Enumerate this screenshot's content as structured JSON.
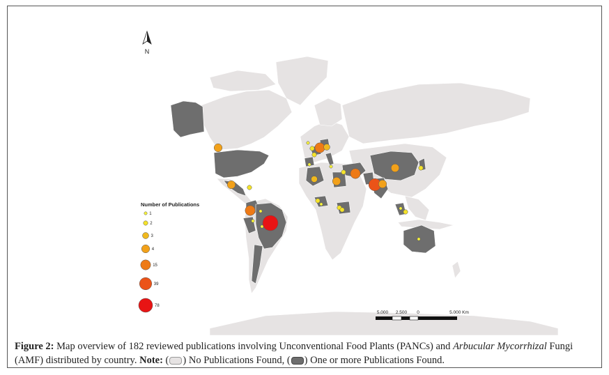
{
  "north_arrow": {
    "letter": "N"
  },
  "legend": {
    "title": "Number of Publications",
    "items": [
      {
        "label": "1",
        "color": "#f7f23a"
      },
      {
        "label": "2",
        "color": "#f5e32a"
      },
      {
        "label": "3",
        "color": "#efb81e"
      },
      {
        "label": "4",
        "color": "#f2a11a"
      },
      {
        "label": "15",
        "color": "#ee7a16"
      },
      {
        "label": "39",
        "color": "#eb5318"
      },
      {
        "label": "78",
        "color": "#e81414"
      }
    ]
  },
  "scale_bar": {
    "labels": [
      "5.000",
      "2.500",
      "0",
      "5.000 Km"
    ]
  },
  "caption": {
    "figure_label": "Figure 2:",
    "text_1": " Map overview of 182 reviewed publications involving Unconventional Food Plants (PANCs) and ",
    "italic_1": "Arbucular Mycorrhizal",
    "text_2": " Fungi (AMF) distributed by country. ",
    "note_label": "Note:",
    "text_3": " (",
    "text_4": ") No Publications Found, (",
    "text_5": ") One or more Publications Found."
  },
  "colors": {
    "land": "#e6e3e3",
    "publication_country": "#6e6e6e",
    "border": "#ffffff"
  }
}
